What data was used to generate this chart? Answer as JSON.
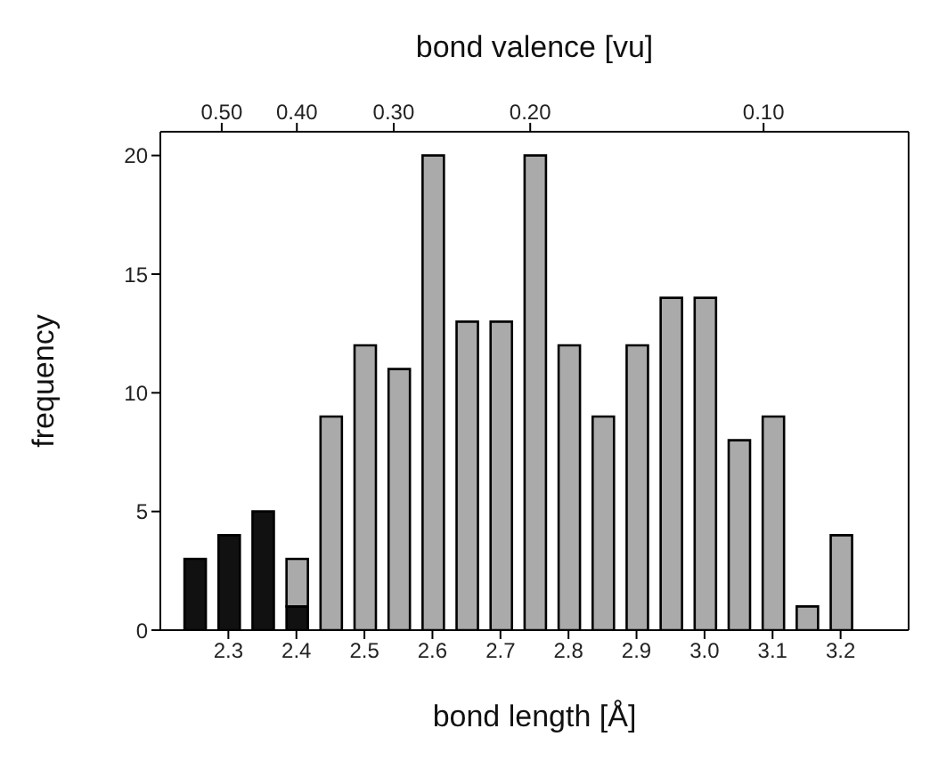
{
  "chart_data": {
    "type": "bar",
    "stacked": true,
    "xlabel": "bond length [Å]",
    "ylabel": "frequency",
    "x2label": "bond valence [vu]",
    "x": [
      2.25,
      2.3,
      2.35,
      2.4,
      2.45,
      2.5,
      2.55,
      2.6,
      2.65,
      2.7,
      2.75,
      2.8,
      2.85,
      2.9,
      2.95,
      3.0,
      3.05,
      3.1,
      3.15,
      3.2
    ],
    "series": [
      {
        "color": "#111111",
        "values": [
          3,
          4,
          5,
          1,
          null,
          null,
          null,
          null,
          null,
          null,
          null,
          null,
          null,
          null,
          null,
          null,
          null,
          null,
          null,
          null
        ]
      },
      {
        "color": "#aaaaaa",
        "values": [
          null,
          null,
          null,
          2,
          9,
          12,
          11,
          20,
          13,
          13,
          20,
          12,
          9,
          12,
          14,
          14,
          8,
          9,
          1,
          4
        ]
      }
    ],
    "xlim": [
      2.2,
      3.3
    ],
    "xticks": [
      {
        "value": 2.3,
        "label": "2.3"
      },
      {
        "value": 2.4,
        "label": "2.4"
      },
      {
        "value": 2.5,
        "label": "2.5"
      },
      {
        "value": 2.6,
        "label": "2.6"
      },
      {
        "value": 2.7,
        "label": "2.7"
      },
      {
        "value": 2.8,
        "label": "2.8"
      },
      {
        "value": 2.9,
        "label": "2.9"
      },
      {
        "value": 3.0,
        "label": "3.0"
      },
      {
        "value": 3.1,
        "label": "3.1"
      },
      {
        "value": 3.2,
        "label": "3.2"
      }
    ],
    "x2lim": [
      0.6,
      0.065
    ],
    "x2ticks": [
      {
        "value": 0.5,
        "label": "0.50"
      },
      {
        "value": 0.4,
        "label": "0.40"
      },
      {
        "value": 0.3,
        "label": "0.30"
      },
      {
        "value": 0.2,
        "label": "0.20"
      },
      {
        "value": 0.1,
        "label": "0.10"
      }
    ],
    "log": "x2",
    "ylim": [
      0,
      21
    ],
    "yticks": [
      0,
      5,
      10,
      15,
      20
    ],
    "grid": false,
    "legend": false
  }
}
